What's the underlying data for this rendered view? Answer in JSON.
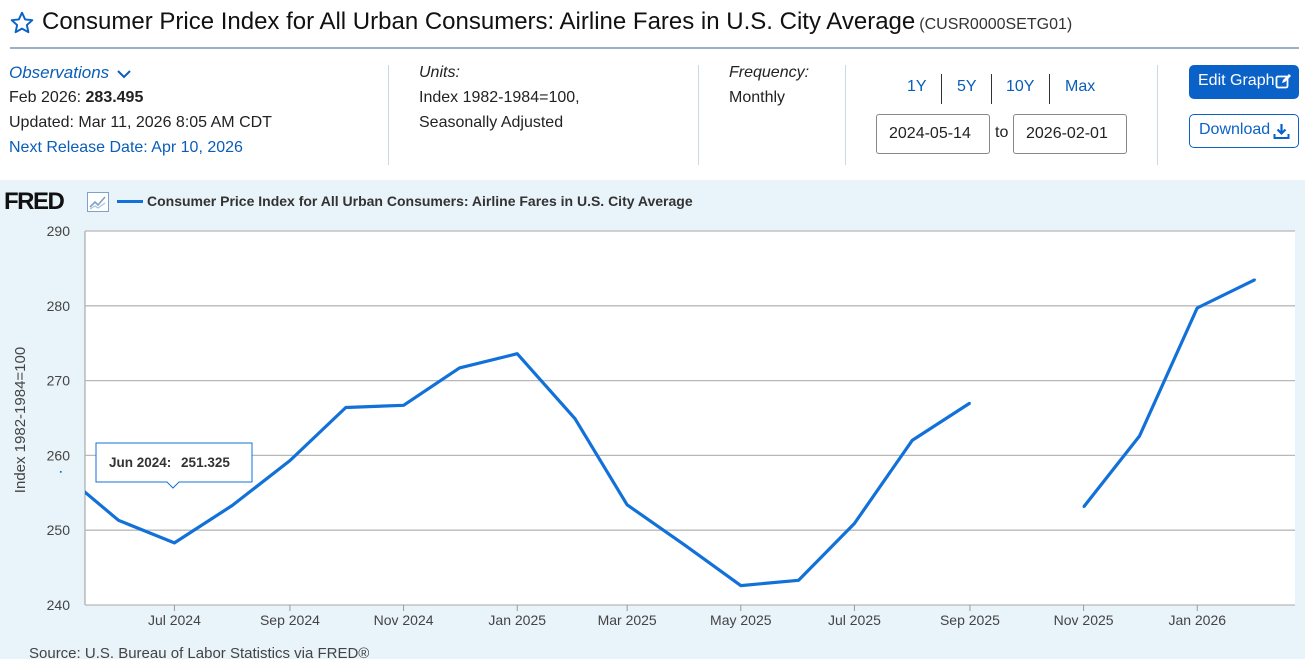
{
  "header": {
    "title": "Consumer Price Index for All Urban Consumers: Airline Fares in U.S. City Average",
    "series_id": "(CUSR0000SETG01)"
  },
  "observations": {
    "label": "Observations",
    "latest_date": "Feb 2026:",
    "latest_value": "283.495",
    "updated": "Updated: Mar 11, 2026 8:05 AM CDT",
    "next_release": "Next Release Date: Apr 10, 2026"
  },
  "units": {
    "label": "Units:",
    "line1": "Index 1982-1984=100,",
    "line2": "Seasonally Adjusted"
  },
  "frequency": {
    "label": "Frequency:",
    "value": "Monthly"
  },
  "range": {
    "buttons": [
      "1Y",
      "5Y",
      "10Y",
      "Max"
    ],
    "start": "2024-05-14",
    "to_label": "to",
    "end": "2026-02-01"
  },
  "actions": {
    "edit_label": "Edit Graph",
    "download_label": "Download"
  },
  "brand": {
    "logo": "FRED",
    "line_color": "#1271d9",
    "accent": "#0a62c9"
  },
  "tooltip": {
    "date": "Jun 2024:",
    "value": "251.325"
  },
  "source": "Source: U.S. Bureau of Labor Statistics via FRED®",
  "chart_data": {
    "type": "line",
    "ylabel": "Index 1982-1984=100",
    "ylim": [
      240,
      290
    ],
    "yticks": [
      240,
      250,
      260,
      270,
      280,
      290
    ],
    "x_range": [
      "2024-05-14",
      "2026-02-01"
    ],
    "xtick_labels": [
      {
        "date": "2024-07-01",
        "label": "Jul 2024"
      },
      {
        "date": "2024-09-01",
        "label": "Sep 2024"
      },
      {
        "date": "2024-11-01",
        "label": "Nov 2024"
      },
      {
        "date": "2025-01-01",
        "label": "Jan 2025"
      },
      {
        "date": "2025-03-01",
        "label": "Mar 2025"
      },
      {
        "date": "2025-05-01",
        "label": "May 2025"
      },
      {
        "date": "2025-07-01",
        "label": "Jul 2025"
      },
      {
        "date": "2025-09-01",
        "label": "Sep 2025"
      },
      {
        "date": "2025-11-01",
        "label": "Nov 2025"
      },
      {
        "date": "2026-01-01",
        "label": "Jan 2026"
      }
    ],
    "grid": true,
    "legend": "top-left",
    "series": [
      {
        "name": "Consumer Price Index for All Urban Consumers: Airline Fares in U.S. City Average",
        "points": [
          {
            "date": "2024-05-01",
            "value": 257.8
          },
          {
            "date": "2024-06-01",
            "value": 251.325
          },
          {
            "date": "2024-07-01",
            "value": 248.3
          },
          {
            "date": "2024-08-01",
            "value": 253.3
          },
          {
            "date": "2024-09-01",
            "value": 259.3
          },
          {
            "date": "2024-10-01",
            "value": 266.4
          },
          {
            "date": "2024-11-01",
            "value": 266.7
          },
          {
            "date": "2024-12-01",
            "value": 271.7
          },
          {
            "date": "2025-01-01",
            "value": 273.6
          },
          {
            "date": "2025-02-01",
            "value": 264.9
          },
          {
            "date": "2025-03-01",
            "value": 253.4
          },
          {
            "date": "2025-04-01",
            "value": 248.0
          },
          {
            "date": "2025-05-01",
            "value": 242.6
          },
          {
            "date": "2025-06-01",
            "value": 243.3
          },
          {
            "date": "2025-07-01",
            "value": 250.9
          },
          {
            "date": "2025-08-01",
            "value": 262.0
          },
          {
            "date": "2025-09-01",
            "value": 267.0
          },
          {
            "date": "2025-10-01",
            "value": null
          },
          {
            "date": "2025-11-01",
            "value": 253.1
          },
          {
            "date": "2025-12-01",
            "value": 262.6
          },
          {
            "date": "2026-01-01",
            "value": 279.7
          },
          {
            "date": "2026-02-01",
            "value": 283.495
          }
        ]
      }
    ]
  }
}
